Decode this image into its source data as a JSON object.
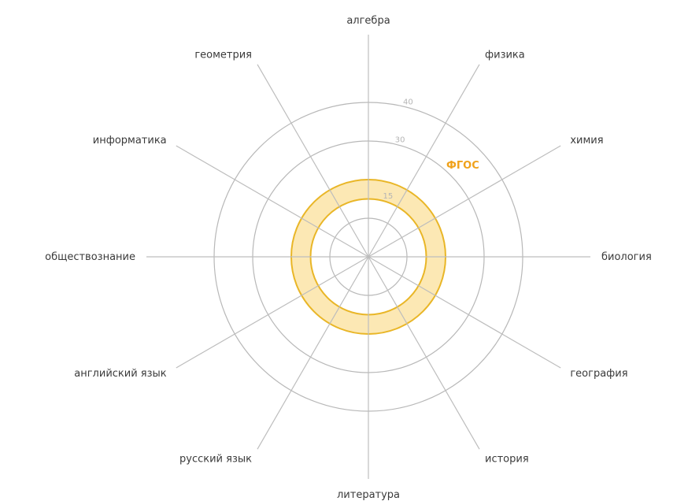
{
  "chart_data": {
    "type": "radar-band",
    "axes": [
      "алгебра",
      "физика",
      "химия",
      "биология",
      "география",
      "история",
      "литература",
      "русский  язык",
      "английский язык",
      "обществознание",
      "информатика",
      "геометрия"
    ],
    "rlim": [
      0,
      40
    ],
    "grid_values": [
      10,
      20,
      30,
      40
    ],
    "tick_labels": [
      "15",
      "30",
      "40"
    ],
    "tick_values": [
      15,
      30,
      40
    ],
    "series": [
      {
        "name": "ФГОС",
        "lower": 15,
        "upper": 20
      }
    ],
    "grid": true
  },
  "colors": {
    "band_fill": "#fce8b4",
    "band_stroke": "#e9b627",
    "grid": "#b8b8b8",
    "spoke": "#bdbdbd",
    "band_label": "#f0a21c",
    "axis_label": "#3a3a3a"
  }
}
